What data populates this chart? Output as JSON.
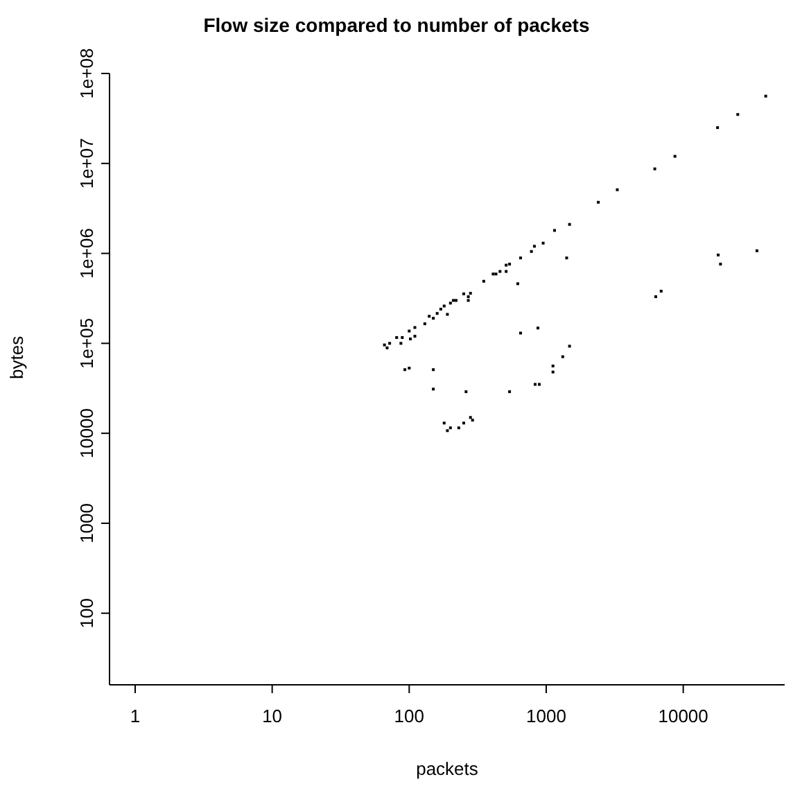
{
  "chart_data": {
    "type": "scatter",
    "title": "Flow size compared to number of packets",
    "xlabel": "packets",
    "ylabel": "bytes",
    "log": "xy",
    "marker": "square",
    "grid": false,
    "legend": false,
    "xlim": [
      0.65,
      55000
    ],
    "ylim": [
      16,
      100000000
    ],
    "xticks": [
      1,
      10,
      100,
      1000,
      10000
    ],
    "yticks": [
      100,
      1000,
      10000,
      {
        "value": 100000,
        "label": "1e+05"
      },
      {
        "value": 1000000,
        "label": "1e+06"
      },
      {
        "value": 10000000,
        "label": "1e+07"
      },
      {
        "value": 100000000,
        "label": "1e+08"
      }
    ],
    "series": [
      {
        "color": "#000000",
        "x": [
          1480,
          1150,
          950,
          820,
          780,
          650,
          1410,
          540,
          510,
          460,
          510,
          410,
          430,
          350,
          620,
          250,
          280,
          270,
          220,
          210,
          200,
          270,
          180,
          170,
          190,
          160,
          140,
          150,
          130,
          110,
          100,
          110,
          89,
          81,
          102,
          87,
          72,
          66,
          69,
          650,
          870,
          1480,
          1320,
          1120,
          1120,
          890,
          830,
          93,
          100,
          150,
          150,
          260,
          540,
          280,
          290,
          250,
          180,
          200,
          230,
          190,
          40000,
          25000,
          17800,
          8700,
          6200,
          3300,
          2400,
          34500,
          18000,
          18700,
          6900,
          6300
        ],
        "values": [
          2100000,
          1800000,
          1300000,
          1200000,
          1050000,
          890000,
          890000,
          760000,
          740000,
          630000,
          630000,
          590000,
          590000,
          490000,
          460000,
          355000,
          360000,
          330000,
          300000,
          300000,
          280000,
          300000,
          260000,
          240000,
          210000,
          215000,
          200000,
          190000,
          165000,
          150000,
          137000,
          120000,
          116000,
          116000,
          112000,
          100000,
          100000,
          96000,
          89000,
          130000,
          148000,
          93000,
          71000,
          56000,
          48000,
          35000,
          35000,
          51000,
          53000,
          51000,
          31000,
          29000,
          29000,
          15000,
          14000,
          13000,
          13000,
          11500,
          11500,
          10700,
          56000000,
          35000000,
          25000000,
          12000000,
          8700000,
          5100000,
          3700000,
          1070000,
          960000,
          760000,
          380000,
          330000
        ]
      }
    ]
  }
}
